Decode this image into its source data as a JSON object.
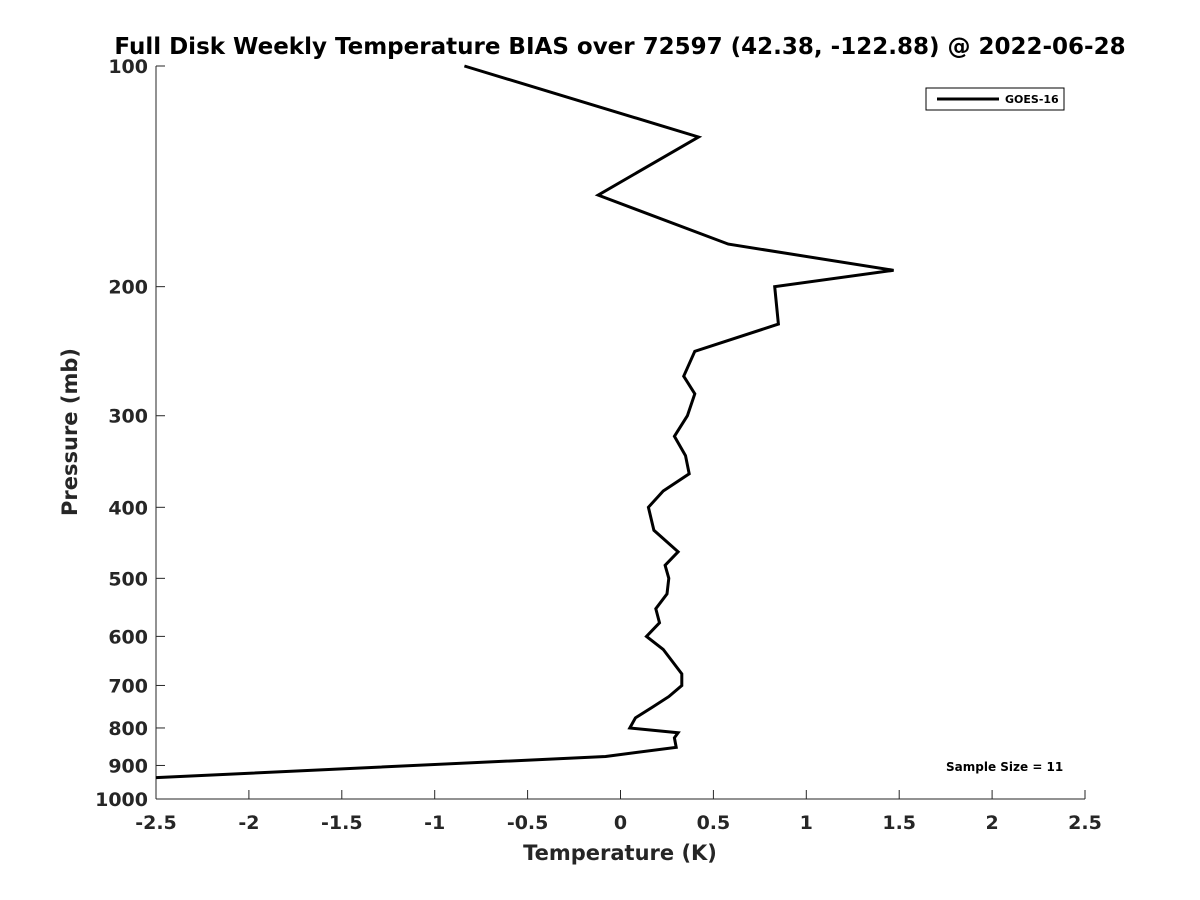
{
  "chart_data": {
    "type": "line",
    "title": "Full Disk Weekly Temperature BIAS over 72597 (42.38, -122.88) @ 2022-06-28",
    "xlabel": "Temperature (K)",
    "ylabel": "Pressure (mb)",
    "xlim": [
      -2.5,
      2.5
    ],
    "ylim": [
      100,
      1000
    ],
    "y_scale": "log",
    "y_reversed": true,
    "grid": false,
    "legend_position": "top-right",
    "x_ticks": [
      -2.5,
      -2,
      -1.5,
      -1,
      -0.5,
      0,
      0.5,
      1,
      1.5,
      2,
      2.5
    ],
    "x_tick_labels": [
      "-2.5",
      "-2",
      "-1.5",
      "-1",
      "-0.5",
      "0",
      "0.5",
      "1",
      "1.5",
      "2",
      "2.5"
    ],
    "y_ticks": [
      100,
      200,
      300,
      400,
      500,
      600,
      700,
      800,
      900,
      1000
    ],
    "y_tick_labels": [
      "100",
      "200",
      "300",
      "400",
      "500",
      "600",
      "700",
      "800",
      "900",
      "1000"
    ],
    "series": [
      {
        "name": "GOES-16",
        "color": "#000000",
        "points": [
          [
            -0.84,
            100
          ],
          [
            0.42,
            125
          ],
          [
            -0.12,
            150
          ],
          [
            0.58,
            175
          ],
          [
            1.47,
            190
          ],
          [
            0.83,
            200
          ],
          [
            0.85,
            225
          ],
          [
            0.4,
            245
          ],
          [
            0.34,
            265
          ],
          [
            0.4,
            280
          ],
          [
            0.36,
            300
          ],
          [
            0.29,
            320
          ],
          [
            0.35,
            340
          ],
          [
            0.37,
            360
          ],
          [
            0.23,
            380
          ],
          [
            0.15,
            400
          ],
          [
            0.18,
            430
          ],
          [
            0.31,
            460
          ],
          [
            0.24,
            480
          ],
          [
            0.26,
            500
          ],
          [
            0.25,
            525
          ],
          [
            0.19,
            550
          ],
          [
            0.21,
            575
          ],
          [
            0.14,
            600
          ],
          [
            0.23,
            625
          ],
          [
            0.33,
            675
          ],
          [
            0.33,
            700
          ],
          [
            0.26,
            725
          ],
          [
            0.17,
            750
          ],
          [
            0.08,
            775
          ],
          [
            0.05,
            800
          ],
          [
            0.31,
            812
          ],
          [
            0.29,
            825
          ],
          [
            0.3,
            850
          ],
          [
            -0.08,
            875
          ],
          [
            -2.5,
            935
          ]
        ]
      }
    ],
    "annotation": "Sample Size = 11"
  }
}
